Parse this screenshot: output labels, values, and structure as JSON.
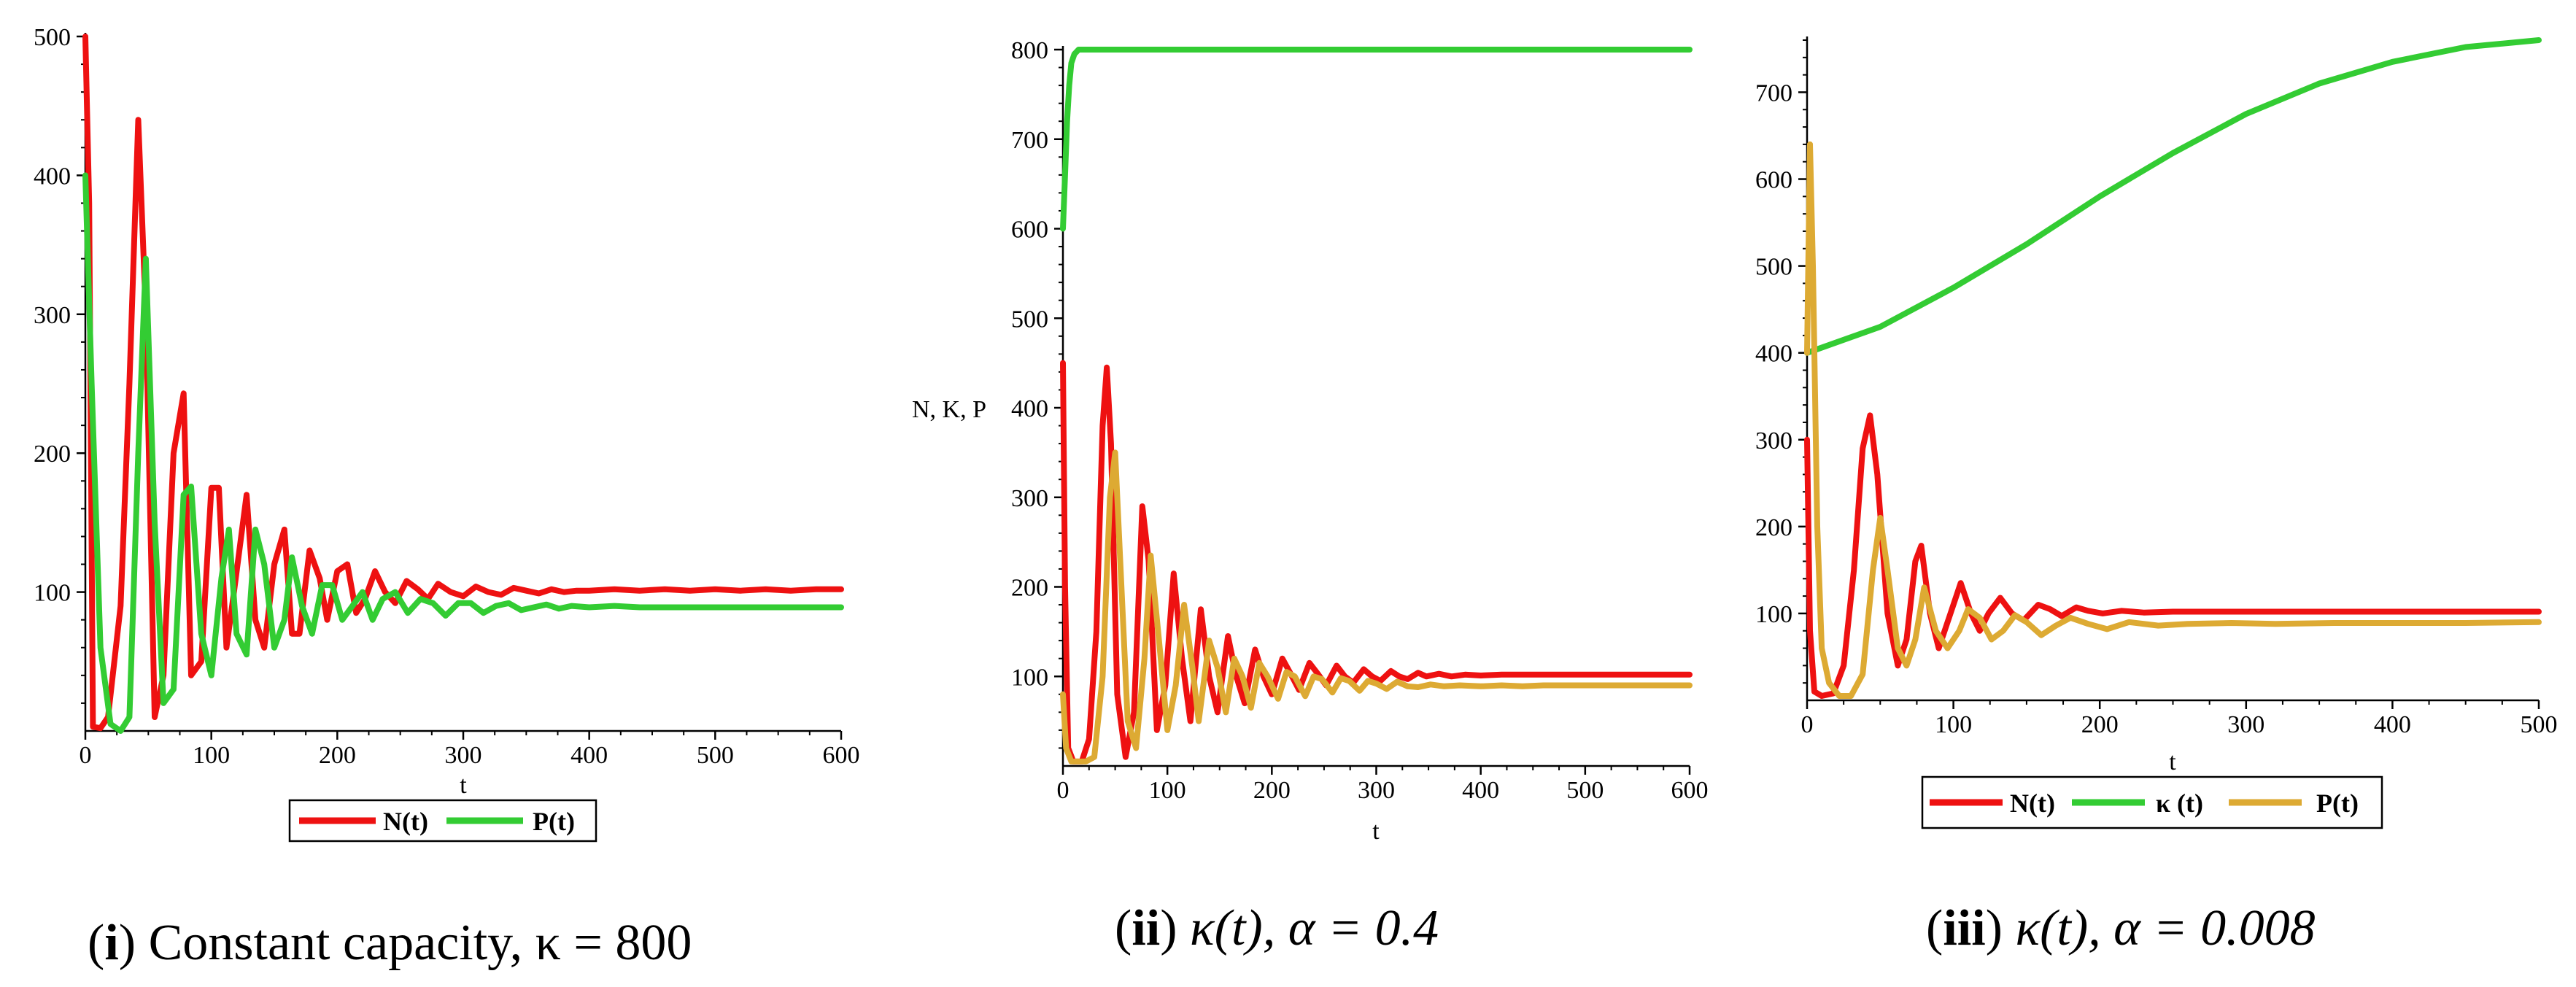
{
  "chart_data": [
    {
      "type": "line",
      "panel_id": "i",
      "caption_id": "i",
      "caption_text": "Constant capacity, κ = 800",
      "xlabel": "t",
      "ylabel": "",
      "xlim": [
        0,
        600
      ],
      "ylim": [
        0,
        500
      ],
      "xticks": [
        0,
        100,
        200,
        300,
        400,
        500,
        600
      ],
      "yticks": [
        100,
        200,
        300,
        400,
        500
      ],
      "legend_position": "bottom-center",
      "series": [
        {
          "name": "N(t)",
          "color": "#ee1111",
          "x": [
            0,
            3,
            6,
            12,
            18,
            28,
            35,
            42,
            48,
            55,
            62,
            70,
            78,
            84,
            92,
            100,
            106,
            112,
            118,
            128,
            135,
            142,
            150,
            158,
            164,
            170,
            178,
            186,
            192,
            200,
            208,
            215,
            222,
            230,
            238,
            246,
            255,
            264,
            272,
            280,
            290,
            300,
            310,
            320,
            330,
            340,
            350,
            360,
            370,
            380,
            390,
            400,
            420,
            440,
            460,
            480,
            500,
            520,
            540,
            560,
            580,
            600
          ],
          "y": [
            500,
            380,
            3,
            2,
            10,
            90,
            250,
            440,
            300,
            10,
            40,
            200,
            243,
            40,
            50,
            175,
            175,
            60,
            100,
            170,
            80,
            60,
            120,
            145,
            70,
            70,
            130,
            110,
            80,
            115,
            120,
            85,
            95,
            115,
            100,
            92,
            108,
            102,
            95,
            106,
            100,
            97,
            104,
            100,
            98,
            103,
            101,
            99,
            102,
            100,
            101,
            101,
            102,
            101,
            102,
            101,
            102,
            101,
            102,
            101,
            102,
            102
          ]
        },
        {
          "name": "P(t)",
          "color": "#33cc33",
          "x": [
            0,
            5,
            12,
            20,
            28,
            35,
            42,
            48,
            55,
            62,
            70,
            78,
            84,
            92,
            100,
            108,
            114,
            120,
            128,
            135,
            142,
            150,
            158,
            164,
            172,
            180,
            188,
            196,
            204,
            212,
            220,
            228,
            236,
            246,
            256,
            266,
            276,
            286,
            296,
            306,
            316,
            326,
            336,
            346,
            356,
            366,
            376,
            386,
            400,
            420,
            440,
            460,
            480,
            500,
            520,
            540,
            560,
            580,
            600
          ],
          "y": [
            400,
            250,
            60,
            5,
            0,
            10,
            200,
            340,
            150,
            20,
            30,
            170,
            176,
            70,
            40,
            110,
            145,
            70,
            55,
            145,
            120,
            60,
            80,
            125,
            90,
            70,
            105,
            105,
            80,
            90,
            100,
            80,
            95,
            100,
            85,
            95,
            92,
            83,
            92,
            92,
            85,
            90,
            92,
            87,
            89,
            91,
            88,
            90,
            89,
            90,
            89,
            89,
            89,
            89,
            89,
            89,
            89,
            89,
            89
          ]
        }
      ]
    },
    {
      "type": "line",
      "panel_id": "ii",
      "caption_id": "ii",
      "caption_text": "κ(t), α = 0.4",
      "xlabel": "t",
      "ylabel": "N, K, P",
      "xlim": [
        0,
        600
      ],
      "ylim": [
        0,
        800
      ],
      "xticks": [
        0,
        100,
        200,
        300,
        400,
        500,
        600
      ],
      "yticks": [
        100,
        200,
        300,
        400,
        500,
        600,
        700,
        800
      ],
      "legend_position": "none",
      "series": [
        {
          "name": "N(t)",
          "color": "#ee1111",
          "x": [
            0,
            2,
            5,
            10,
            18,
            25,
            32,
            38,
            42,
            46,
            52,
            60,
            68,
            76,
            82,
            90,
            98,
            106,
            114,
            122,
            132,
            140,
            148,
            158,
            166,
            174,
            184,
            192,
            200,
            210,
            218,
            226,
            236,
            244,
            252,
            262,
            270,
            278,
            288,
            296,
            304,
            314,
            322,
            330,
            340,
            348,
            360,
            372,
            385,
            400,
            420,
            440,
            460,
            480,
            500,
            520,
            540,
            560,
            580,
            600
          ],
          "y": [
            450,
            200,
            20,
            5,
            5,
            30,
            150,
            380,
            445,
            360,
            80,
            10,
            60,
            290,
            230,
            40,
            90,
            215,
            120,
            50,
            175,
            100,
            60,
            145,
            100,
            70,
            130,
            100,
            80,
            120,
            103,
            85,
            115,
            103,
            90,
            112,
            100,
            93,
            108,
            100,
            95,
            106,
            100,
            97,
            104,
            100,
            103,
            100,
            102,
            101,
            102,
            102,
            102,
            102,
            102,
            102,
            102,
            102,
            102,
            102
          ]
        },
        {
          "name": "κ(t)",
          "color": "#33cc33",
          "x": [
            0,
            2,
            4,
            6,
            8,
            11,
            15,
            20,
            30,
            600
          ],
          "y": [
            600,
            660,
            720,
            760,
            785,
            795,
            800,
            800,
            800,
            800
          ]
        },
        {
          "name": "P(t)",
          "color": "#ddaa33",
          "x": [
            0,
            3,
            8,
            15,
            22,
            30,
            38,
            45,
            50,
            56,
            62,
            70,
            78,
            84,
            92,
            100,
            108,
            116,
            124,
            130,
            140,
            148,
            156,
            164,
            172,
            180,
            188,
            196,
            206,
            214,
            222,
            232,
            240,
            248,
            258,
            266,
            274,
            284,
            292,
            300,
            310,
            320,
            330,
            340,
            352,
            365,
            380,
            400,
            420,
            440,
            460,
            480,
            500,
            520,
            540,
            560,
            580,
            600
          ],
          "y": [
            80,
            20,
            5,
            5,
            5,
            10,
            100,
            300,
            350,
            200,
            50,
            20,
            120,
            235,
            140,
            40,
            90,
            180,
            110,
            50,
            140,
            110,
            60,
            120,
            100,
            65,
            115,
            100,
            75,
            105,
            100,
            78,
            100,
            97,
            82,
            98,
            95,
            84,
            95,
            92,
            86,
            94,
            89,
            88,
            91,
            89,
            90,
            89,
            90,
            89,
            90,
            90,
            90,
            90,
            90,
            90,
            90,
            90
          ]
        }
      ]
    },
    {
      "type": "line",
      "panel_id": "iii",
      "caption_id": "iii",
      "caption_text": "κ(t), α = 0.008",
      "xlabel": "t",
      "ylabel": "",
      "xlim": [
        0,
        500
      ],
      "ylim": [
        0,
        760
      ],
      "xticks": [
        0,
        100,
        200,
        300,
        400,
        500
      ],
      "yticks": [
        100,
        200,
        300,
        400,
        500,
        600,
        700
      ],
      "legend_position": "bottom-center",
      "series": [
        {
          "name": "N(t)",
          "color": "#ee1111",
          "x": [
            0,
            2,
            5,
            10,
            18,
            25,
            32,
            38,
            43,
            48,
            55,
            62,
            68,
            74,
            78,
            84,
            90,
            98,
            105,
            112,
            118,
            124,
            132,
            140,
            148,
            158,
            166,
            174,
            184,
            192,
            202,
            215,
            230,
            250,
            275,
            300,
            350,
            400,
            450,
            500
          ],
          "y": [
            300,
            80,
            10,
            5,
            8,
            40,
            150,
            290,
            328,
            260,
            100,
            40,
            70,
            160,
            178,
            100,
            60,
            100,
            135,
            100,
            80,
            100,
            118,
            100,
            92,
            110,
            105,
            97,
            107,
            103,
            100,
            103,
            101,
            102,
            102,
            102,
            102,
            102,
            102,
            102
          ]
        },
        {
          "name": "κ (t)",
          "color": "#33cc33",
          "x": [
            0,
            50,
            100,
            150,
            200,
            250,
            300,
            350,
            400,
            450,
            500
          ],
          "y": [
            400,
            430,
            475,
            525,
            580,
            630,
            675,
            710,
            735,
            752,
            765
          ]
        },
        {
          "name": "P(t)",
          "color": "#ddaa33",
          "x": [
            0,
            2,
            4,
            7,
            10,
            15,
            22,
            30,
            38,
            45,
            50,
            55,
            62,
            68,
            74,
            80,
            88,
            96,
            104,
            110,
            118,
            126,
            134,
            142,
            150,
            160,
            170,
            180,
            192,
            205,
            220,
            240,
            260,
            290,
            320,
            360,
            400,
            450,
            500
          ],
          "y": [
            400,
            640,
            500,
            200,
            60,
            20,
            5,
            5,
            30,
            150,
            210,
            150,
            60,
            40,
            70,
            130,
            80,
            60,
            80,
            105,
            95,
            70,
            80,
            98,
            90,
            75,
            86,
            95,
            88,
            82,
            90,
            86,
            88,
            89,
            88,
            89,
            89,
            89,
            90
          ]
        }
      ]
    }
  ]
}
